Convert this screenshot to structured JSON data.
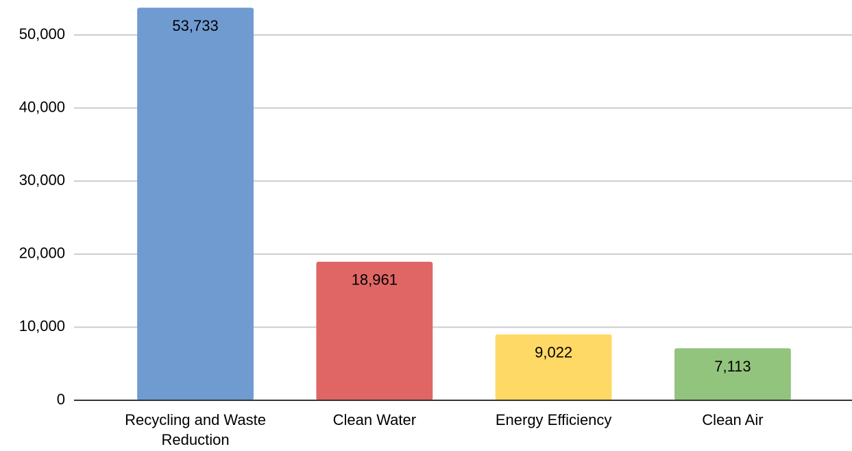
{
  "chart_data": {
    "type": "bar",
    "categories": [
      "Recycling and Waste Reduction",
      "Clean Water",
      "Energy Efficiency",
      "Clean Air"
    ],
    "values": [
      53733,
      18961,
      9022,
      7113
    ],
    "value_labels": [
      "53,733",
      "18,961",
      "9,022",
      "7,113"
    ],
    "colors": [
      "#6f9bd1",
      "#e06666",
      "#ffd966",
      "#93c47d"
    ],
    "ylim": [
      0,
      55000
    ],
    "yticks": [
      0,
      {
        "value": 10000,
        "label": "10,000"
      },
      {
        "value": 20000,
        "label": "20,000"
      },
      {
        "value": 30000,
        "label": "30,000"
      },
      {
        "value": 40000,
        "label": "40,000"
      },
      {
        "value": 50000,
        "label": "50,000"
      }
    ],
    "grid": true
  }
}
